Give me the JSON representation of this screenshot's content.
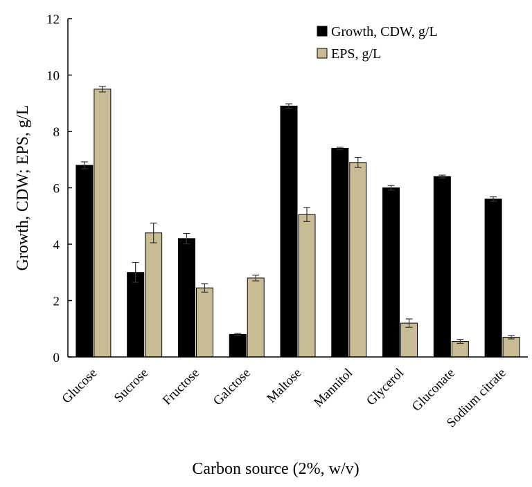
{
  "chart_data": {
    "type": "bar",
    "title": "",
    "xlabel": "Carbon source (2%, w/v)",
    "ylabel": "Growth, CDW; EPS, g/L",
    "ylim": [
      0,
      12
    ],
    "yticks": [
      "0",
      "2",
      "4",
      "6",
      "8",
      "10",
      "12"
    ],
    "categories": [
      "Glucose",
      "Sucrose",
      "Fructose",
      "Galctose",
      "Maltose",
      "Mannitol",
      "Glycerol",
      "Gluconate",
      "Sodium citrate"
    ],
    "series": [
      {
        "name": "Growth, CDW, g/L",
        "color": "#000000",
        "values": [
          6.8,
          3.0,
          4.2,
          0.8,
          8.9,
          7.4,
          6.0,
          6.4,
          5.6
        ],
        "errors": [
          0.12,
          0.35,
          0.18,
          0.04,
          0.08,
          0.04,
          0.08,
          0.05,
          0.08
        ]
      },
      {
        "name": "EPS, g/L",
        "color": "#c8bc94",
        "values": [
          9.5,
          4.4,
          2.45,
          2.8,
          5.05,
          6.9,
          1.2,
          0.55,
          0.7
        ],
        "errors": [
          0.1,
          0.35,
          0.15,
          0.1,
          0.25,
          0.18,
          0.15,
          0.07,
          0.06
        ]
      }
    ],
    "legend_position": "top-right",
    "grid": false
  }
}
